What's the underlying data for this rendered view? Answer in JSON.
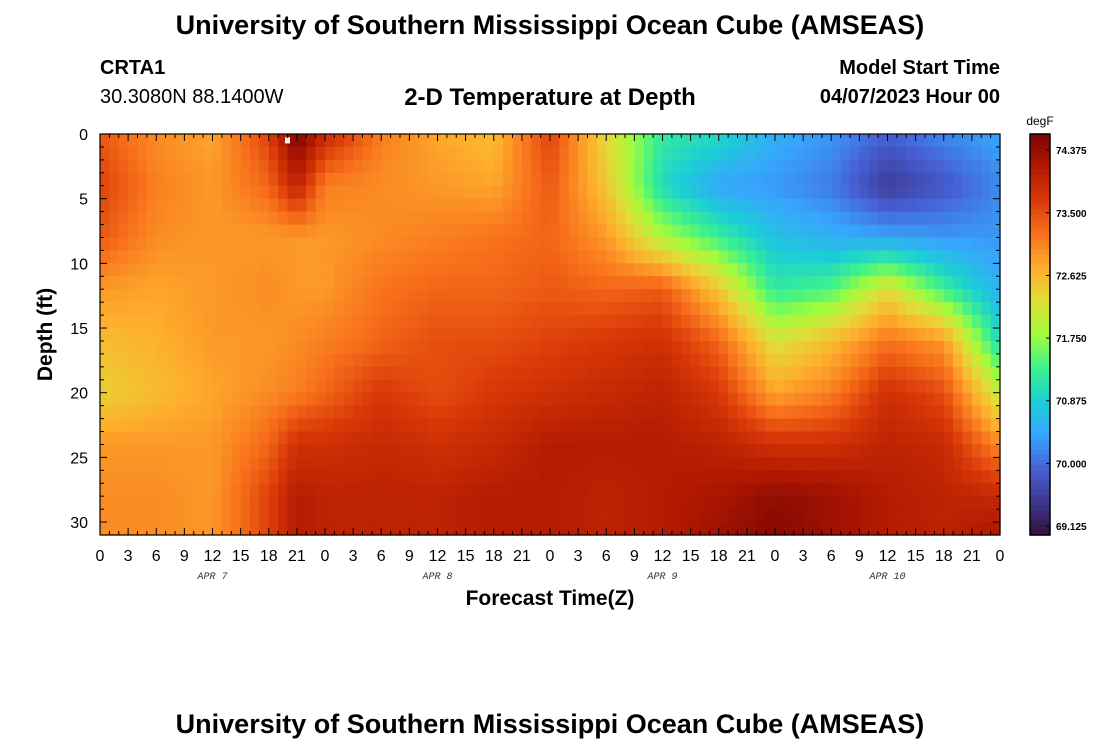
{
  "header": {
    "title": "University of Southern Mississippi Ocean Cube (AMSEAS)",
    "station": "CRTA1",
    "coordinates": "30.3080N  88.1400W",
    "subtitle": "2-D Temperature at Depth",
    "model_start_label": "Model Start Time",
    "model_start_value": "04/07/2023 Hour 00"
  },
  "footer": {
    "title": "University of Southern Mississippi Ocean Cube (AMSEAS)"
  },
  "chart_data": {
    "type": "heatmap",
    "title": "2-D Temperature at Depth",
    "xlabel": "Forecast Time(Z)",
    "ylabel": "Depth (ft)",
    "x_tick_labels": [
      "0",
      "3",
      "6",
      "9",
      "12",
      "15",
      "18",
      "21",
      "0",
      "3",
      "6",
      "9",
      "12",
      "15",
      "18",
      "21",
      "0",
      "3",
      "6",
      "9",
      "12",
      "15",
      "18",
      "21",
      "0",
      "3",
      "6",
      "9",
      "12",
      "15",
      "18",
      "21",
      "0"
    ],
    "x_range_hours": [
      0,
      96
    ],
    "date_labels": [
      {
        "label": "APR 7",
        "hour": 12
      },
      {
        "label": "APR 8",
        "hour": 36
      },
      {
        "label": "APR 9",
        "hour": 60
      },
      {
        "label": "APR 10",
        "hour": 84
      }
    ],
    "y_ticks": [
      0,
      5,
      10,
      15,
      20,
      25,
      30
    ],
    "y_range_ft": [
      0,
      31
    ],
    "colorbar": {
      "unit": "degF",
      "range": [
        69.0,
        74.6
      ],
      "tick_labels": [
        "74.375",
        "73.500",
        "72.625",
        "71.750",
        "70.875",
        "70.000",
        "69.125"
      ],
      "colors": [
        "#30123b",
        "#3e378f",
        "#4662d7",
        "#37a6fd",
        "#1bcfd4",
        "#3df28c",
        "#a2fc3c",
        "#e1dd37",
        "#feae2d",
        "#f8721c",
        "#da3907",
        "#b11901",
        "#7a0403"
      ]
    },
    "depths_ft": [
      0,
      4,
      8,
      12,
      16,
      20,
      24,
      28,
      31
    ],
    "times_hr": [
      0,
      6,
      12,
      18,
      21,
      24,
      30,
      36,
      42,
      48,
      54,
      60,
      66,
      72,
      78,
      84,
      90,
      96
    ],
    "values_degF": [
      [
        73.4,
        73.0,
        72.8,
        73.6,
        74.6,
        73.9,
        73.1,
        72.8,
        72.6,
        73.6,
        72.3,
        71.2,
        71.0,
        70.5,
        70.3,
        69.9,
        70.2,
        70.4
      ],
      [
        73.6,
        73.1,
        72.9,
        73.3,
        74.0,
        73.1,
        73.0,
        72.9,
        72.8,
        73.4,
        72.5,
        71.0,
        70.4,
        70.3,
        70.1,
        69.5,
        69.8,
        70.2
      ],
      [
        73.4,
        73.0,
        72.9,
        72.9,
        72.9,
        72.9,
        73.0,
        73.1,
        73.2,
        73.3,
        72.9,
        71.9,
        71.3,
        70.7,
        70.5,
        70.4,
        70.3,
        70.3
      ],
      [
        72.9,
        72.8,
        72.9,
        73.0,
        72.9,
        72.9,
        73.2,
        73.3,
        73.3,
        73.4,
        73.3,
        73.4,
        72.5,
        71.2,
        71.4,
        72.3,
        71.3,
        70.5
      ],
      [
        72.6,
        72.7,
        72.9,
        72.9,
        73.0,
        73.1,
        73.3,
        73.5,
        73.5,
        73.6,
        73.7,
        73.8,
        73.3,
        72.2,
        72.6,
        73.2,
        72.9,
        71.0
      ],
      [
        72.4,
        72.6,
        72.8,
        73.0,
        73.1,
        73.3,
        73.7,
        73.5,
        73.7,
        73.8,
        73.9,
        74.0,
        73.7,
        72.8,
        73.1,
        73.8,
        73.5,
        72.0
      ],
      [
        72.9,
        72.9,
        72.9,
        73.3,
        73.8,
        73.8,
        73.9,
        73.8,
        73.9,
        74.1,
        74.1,
        74.1,
        74.0,
        73.8,
        73.8,
        74.0,
        73.9,
        73.0
      ],
      [
        73.0,
        73.0,
        72.9,
        73.6,
        74.1,
        74.0,
        74.0,
        74.0,
        74.1,
        74.1,
        74.0,
        74.1,
        74.2,
        74.4,
        74.3,
        74.1,
        74.0,
        73.9
      ],
      [
        73.0,
        73.0,
        72.9,
        73.6,
        74.1,
        74.0,
        74.0,
        74.0,
        74.1,
        74.1,
        74.0,
        74.1,
        74.3,
        74.5,
        74.3,
        74.1,
        74.0,
        74.2
      ]
    ],
    "marker": {
      "hour": 20,
      "depth_ft": 0.3
    }
  }
}
